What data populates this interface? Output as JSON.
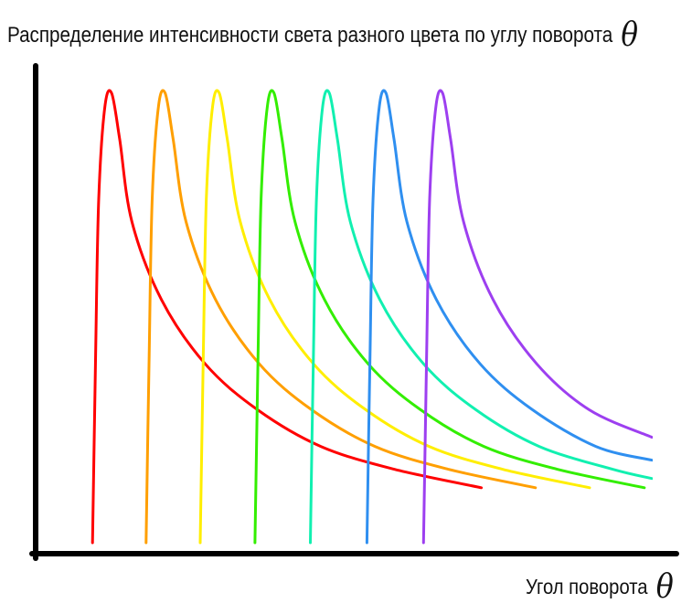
{
  "chart_data": {
    "type": "line",
    "title": "Распределение интенсивности света разного цвета по углу поворота",
    "title_symbol": "θ",
    "xlabel": "Угол поворота",
    "xlabel_symbol": "θ",
    "ylabel": "",
    "grid": false,
    "legend": "none",
    "xlim": [
      0,
      1
    ],
    "ylim": [
      0,
      1
    ],
    "series": [
      {
        "color": "#ff0000",
        "x": [
          0.091,
          0.096,
          0.101,
          0.111,
          0.122,
          0.135,
          0.155,
          0.203,
          0.274,
          0.359,
          0.462,
          0.582,
          0.723
        ],
        "y": [
          0.0,
          0.41,
          0.75,
          0.95,
          0.98,
          0.88,
          0.7,
          0.53,
          0.39,
          0.29,
          0.21,
          0.16,
          0.12
        ]
      },
      {
        "color": "#ff9f00",
        "x": [
          0.178,
          0.183,
          0.188,
          0.198,
          0.209,
          0.222,
          0.243,
          0.291,
          0.362,
          0.447,
          0.55,
          0.67,
          0.811
        ],
        "y": [
          0.0,
          0.41,
          0.75,
          0.95,
          0.98,
          0.88,
          0.7,
          0.53,
          0.39,
          0.29,
          0.21,
          0.16,
          0.12
        ]
      },
      {
        "color": "#ffee00",
        "x": [
          0.266,
          0.271,
          0.276,
          0.286,
          0.297,
          0.31,
          0.331,
          0.379,
          0.45,
          0.535,
          0.638,
          0.758,
          0.899
        ],
        "y": [
          0.0,
          0.41,
          0.75,
          0.95,
          0.98,
          0.88,
          0.7,
          0.53,
          0.39,
          0.29,
          0.21,
          0.16,
          0.12
        ]
      },
      {
        "color": "#33ee00",
        "x": [
          0.355,
          0.36,
          0.365,
          0.375,
          0.386,
          0.399,
          0.42,
          0.468,
          0.539,
          0.624,
          0.727,
          0.847,
          0.988
        ],
        "y": [
          0.0,
          0.41,
          0.75,
          0.95,
          0.98,
          0.88,
          0.7,
          0.53,
          0.39,
          0.29,
          0.21,
          0.16,
          0.12
        ]
      },
      {
        "color": "#11f0b0",
        "x": [
          0.445,
          0.45,
          0.455,
          0.465,
          0.476,
          0.489,
          0.51,
          0.558,
          0.629,
          0.714,
          0.817,
          0.937,
          1.0
        ],
        "y": [
          0.0,
          0.41,
          0.75,
          0.95,
          0.98,
          0.88,
          0.7,
          0.53,
          0.39,
          0.29,
          0.21,
          0.16,
          0.14
        ]
      },
      {
        "color": "#2f8ff0",
        "x": [
          0.537,
          0.542,
          0.547,
          0.557,
          0.568,
          0.581,
          0.602,
          0.65,
          0.721,
          0.806,
          0.909,
          1.0
        ],
        "y": [
          0.0,
          0.41,
          0.75,
          0.95,
          0.98,
          0.88,
          0.7,
          0.53,
          0.39,
          0.29,
          0.21,
          0.18
        ]
      },
      {
        "color": "#9d3ff0",
        "x": [
          0.629,
          0.634,
          0.639,
          0.649,
          0.66,
          0.673,
          0.694,
          0.742,
          0.813,
          0.898,
          1.0
        ],
        "y": [
          0.0,
          0.41,
          0.75,
          0.95,
          0.98,
          0.88,
          0.7,
          0.53,
          0.39,
          0.29,
          0.23
        ]
      }
    ]
  }
}
